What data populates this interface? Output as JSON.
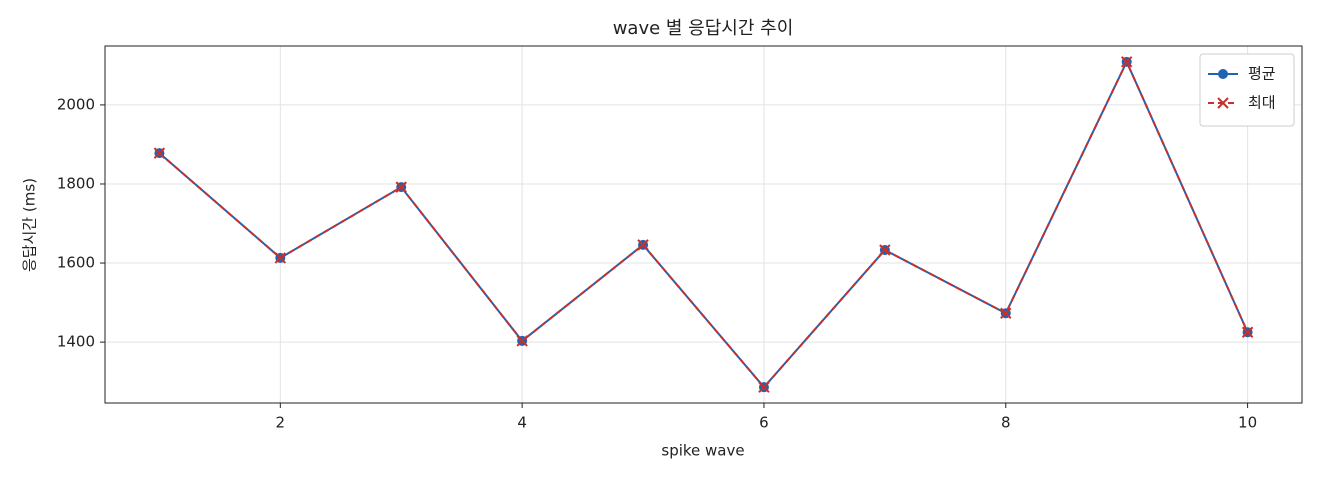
{
  "chart_data": {
    "type": "line",
    "title": "wave 별 응답시간 추이",
    "xlabel": "spike wave",
    "ylabel": "응답시간 (ms)",
    "x": [
      1,
      2,
      3,
      4,
      5,
      6,
      7,
      8,
      9,
      10
    ],
    "series": [
      {
        "name": "평균",
        "color": "#1f63b4",
        "marker": "circle",
        "dash": false,
        "values": [
          1878,
          1613,
          1792,
          1403,
          1646,
          1286,
          1633,
          1473,
          2109,
          1425
        ]
      },
      {
        "name": "최대",
        "color": "#c9302c",
        "marker": "x",
        "dash": true,
        "values": [
          1878,
          1613,
          1792,
          1403,
          1646,
          1286,
          1633,
          1473,
          2109,
          1425
        ]
      }
    ],
    "xlim": [
      0.55,
      10.45
    ],
    "xticks": [
      2,
      4,
      6,
      8,
      10
    ],
    "ylim": [
      1246,
      2149
    ],
    "yticks": [
      1400,
      1600,
      1800,
      2000
    ],
    "grid": true,
    "legend": "upper right"
  }
}
